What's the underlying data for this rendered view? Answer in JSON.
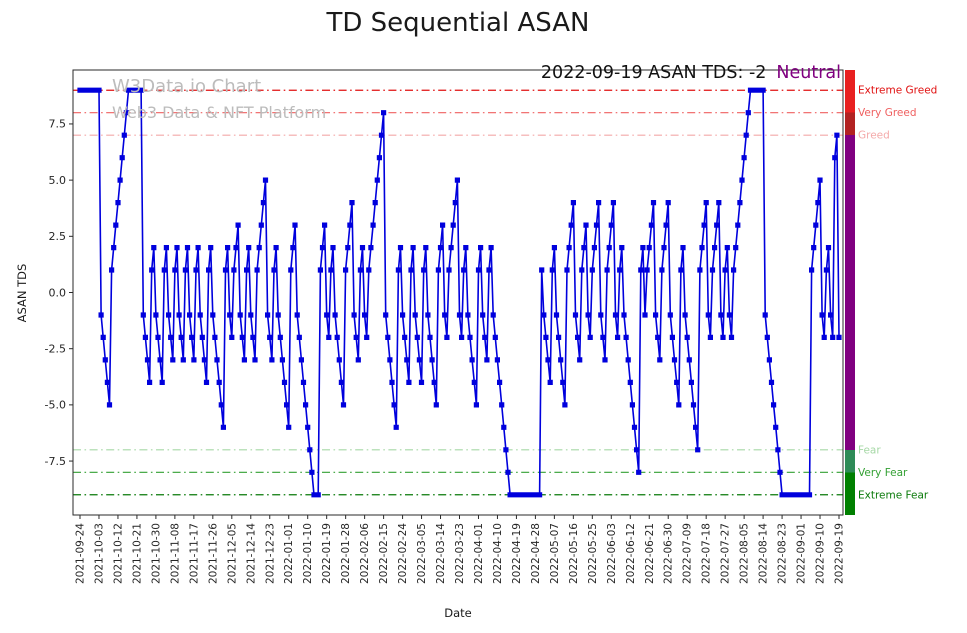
{
  "title": "TD Sequential ASAN",
  "watermark": {
    "line1": "W3Data.io Chart",
    "line2": "Web3 Data & NFT Platform"
  },
  "annotation": {
    "text": "2022-09-19 ASAN TDS: -2",
    "sentiment": "Neutral",
    "sentiment_color": "#800080"
  },
  "axes": {
    "ylabel": "ASAN TDS",
    "xlabel": "Date",
    "yticks": [
      7.5,
      5.0,
      2.5,
      0.0,
      -2.5,
      -5.0,
      -7.5
    ]
  },
  "chart_data": {
    "type": "line",
    "title": "TD Sequential ASAN",
    "xlabel": "Date",
    "ylabel": "ASAN TDS",
    "series_name": "ASAN TDS",
    "series_color": "#0000dd",
    "marker": "square",
    "x_start": "2021-09-24",
    "x_end": "2022-09-19",
    "x_frequency": "daily",
    "ylim": [
      -9.9,
      9.9
    ],
    "grid": false,
    "x_tick_labels": [
      "2021-09-24",
      "2021-10-03",
      "2021-10-12",
      "2021-10-21",
      "2021-10-30",
      "2021-11-08",
      "2021-11-17",
      "2021-11-26",
      "2021-12-05",
      "2021-12-14",
      "2021-12-23",
      "2022-01-01",
      "2022-01-10",
      "2022-01-19",
      "2022-01-28",
      "2022-02-06",
      "2022-02-15",
      "2022-02-24",
      "2022-03-05",
      "2022-03-14",
      "2022-03-23",
      "2022-04-01",
      "2022-04-10",
      "2022-04-19",
      "2022-04-28",
      "2022-05-07",
      "2022-05-16",
      "2022-05-25",
      "2022-06-03",
      "2022-06-12",
      "2022-06-21",
      "2022-06-30",
      "2022-07-09",
      "2022-07-18",
      "2022-07-27",
      "2022-08-05",
      "2022-08-14",
      "2022-08-23",
      "2022-09-01",
      "2022-09-10",
      "2022-09-19"
    ],
    "x_tick_step": 9,
    "values": [
      9,
      9,
      9,
      9,
      9,
      9,
      9,
      9,
      9,
      9,
      -1,
      -2,
      -3,
      -4,
      -5,
      1,
      2,
      3,
      4,
      5,
      6,
      7,
      8,
      9,
      9,
      9,
      9,
      9,
      9,
      9,
      -1,
      -2,
      -3,
      -4,
      1,
      2,
      -1,
      -2,
      -3,
      -4,
      1,
      2,
      -1,
      -2,
      -3,
      1,
      2,
      -1,
      -2,
      -3,
      1,
      2,
      -1,
      -2,
      -3,
      1,
      2,
      -1,
      -2,
      -3,
      -4,
      1,
      2,
      -1,
      -2,
      -3,
      -4,
      -5,
      -6,
      1,
      2,
      -1,
      -2,
      1,
      2,
      3,
      -1,
      -2,
      -3,
      1,
      2,
      -1,
      -2,
      -3,
      1,
      2,
      3,
      4,
      5,
      -1,
      -2,
      -3,
      1,
      2,
      -1,
      -2,
      -3,
      -4,
      -5,
      -6,
      1,
      2,
      3,
      -1,
      -2,
      -3,
      -4,
      -5,
      -6,
      -7,
      -8,
      -9,
      -9,
      -9,
      1,
      2,
      3,
      -1,
      -2,
      1,
      2,
      -1,
      -2,
      -3,
      -4,
      -5,
      1,
      2,
      3,
      4,
      -1,
      -2,
      -3,
      1,
      2,
      -1,
      -2,
      1,
      2,
      3,
      4,
      5,
      6,
      7,
      8,
      -1,
      -2,
      -3,
      -4,
      -5,
      -6,
      1,
      2,
      -1,
      -2,
      -3,
      -4,
      1,
      2,
      -1,
      -2,
      -3,
      -4,
      1,
      2,
      -1,
      -2,
      -3,
      -4,
      -5,
      1,
      2,
      3,
      -1,
      -2,
      1,
      2,
      3,
      4,
      5,
      -1,
      -2,
      1,
      2,
      -1,
      -2,
      -3,
      -4,
      -5,
      1,
      2,
      -1,
      -2,
      -3,
      1,
      2,
      -1,
      -2,
      -3,
      -4,
      -5,
      -6,
      -7,
      -8,
      -9,
      -9,
      -9,
      -9,
      -9,
      -9,
      -9,
      -9,
      -9,
      -9,
      -9,
      -9,
      -9,
      -9,
      -9,
      1,
      -1,
      -2,
      -3,
      -4,
      1,
      2,
      -1,
      -2,
      -3,
      -4,
      -5,
      1,
      2,
      3,
      4,
      -1,
      -2,
      -3,
      1,
      2,
      3,
      -1,
      -2,
      1,
      2,
      3,
      4,
      -1,
      -2,
      -3,
      1,
      2,
      3,
      4,
      -1,
      -2,
      1,
      2,
      -1,
      -2,
      -3,
      -4,
      -5,
      -6,
      -7,
      -8,
      1,
      2,
      -1,
      1,
      2,
      3,
      4,
      -1,
      -2,
      -3,
      1,
      2,
      3,
      4,
      -1,
      -2,
      -3,
      -4,
      -5,
      1,
      2,
      -1,
      -2,
      -3,
      -4,
      -5,
      -6,
      -7,
      1,
      2,
      3,
      4,
      -1,
      -2,
      1,
      2,
      3,
      4,
      -1,
      -2,
      1,
      2,
      -1,
      -2,
      1,
      2,
      3,
      4,
      5,
      6,
      7,
      8,
      9,
      9,
      9,
      9,
      9,
      9,
      9,
      -1,
      -2,
      -3,
      -4,
      -5,
      -6,
      -7,
      -8,
      -9,
      -9,
      -9,
      -9,
      -9,
      -9,
      -9,
      -9,
      -9,
      -9,
      -9,
      -9,
      -9,
      -9,
      1,
      2,
      3,
      4,
      5,
      -1,
      -2,
      1,
      2,
      -1,
      -2,
      6,
      7,
      -2
    ],
    "thresholds": [
      {
        "value": 9,
        "label": "Extreme Greed",
        "color": "#e01010"
      },
      {
        "value": 8,
        "label": "Very Greed",
        "color": "#ef6060"
      },
      {
        "value": 7,
        "label": "Greed",
        "color": "#f4a9a9"
      },
      {
        "value": -7,
        "label": "Fear",
        "color": "#a6d8a6"
      },
      {
        "value": -8,
        "label": "Very Fear",
        "color": "#33a033"
      },
      {
        "value": -9,
        "label": "Extreme Fear",
        "color": "#0a7a0a"
      }
    ],
    "colorbar": {
      "segments": [
        {
          "from": 9.9,
          "to": 8.0,
          "color": "#e82020"
        },
        {
          "from": 8.0,
          "to": 7.0,
          "color": "#b22222"
        },
        {
          "from": 7.0,
          "to": -7.0,
          "color": "#800080"
        },
        {
          "from": -7.0,
          "to": -8.0,
          "color": "#2e8b57"
        },
        {
          "from": -8.0,
          "to": -9.9,
          "color": "#008000"
        }
      ]
    }
  }
}
